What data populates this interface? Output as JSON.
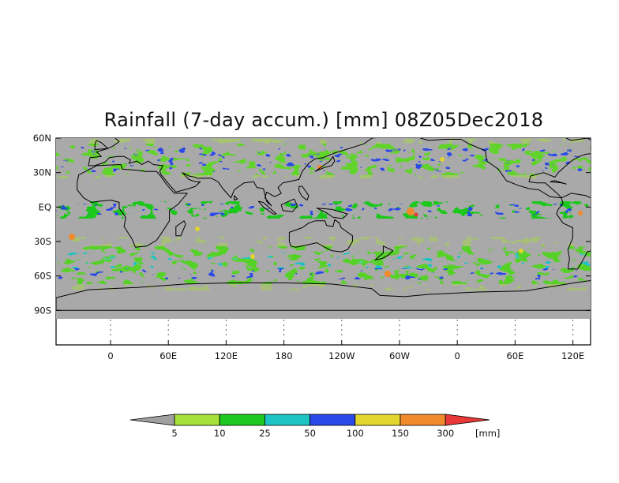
{
  "map": {
    "title": "Rainfall (7-day accum.) [mm] 08Z05Dec2018",
    "projection": "equirectangular",
    "lon_range": [
      -30,
      300
    ],
    "lat_range": [
      -120,
      60
    ],
    "data_lat_range": [
      -90,
      60
    ],
    "lat_ticks": [
      {
        "lat": 60,
        "label": "60N"
      },
      {
        "lat": 30,
        "label": "30N"
      },
      {
        "lat": 0,
        "label": "EQ"
      },
      {
        "lat": -30,
        "label": "30S"
      },
      {
        "lat": -60,
        "label": "60S"
      },
      {
        "lat": -90,
        "label": "90S"
      }
    ],
    "lon_ticks": [
      {
        "lon": 0,
        "label": "0"
      },
      {
        "lon": 60,
        "label": "60E"
      },
      {
        "lon": 120,
        "label": "120E"
      },
      {
        "lon": 180,
        "label": "180"
      },
      {
        "lon": 240,
        "label": "120W"
      },
      {
        "lon": 300,
        "label": "60W"
      },
      {
        "lon": 360,
        "label": "0"
      },
      {
        "lon": 420,
        "label": "60E"
      },
      {
        "lon": 480,
        "label": "120E"
      }
    ],
    "no_data_color": "#a9a9a9",
    "coastline_color": "#000000"
  },
  "legend": {
    "unit_label": "[mm]",
    "low_color": "#a0a0a0",
    "high_color": "#e83838",
    "bins": [
      {
        "color": "#a6e03a"
      },
      {
        "color": "#1ec81e"
      },
      {
        "color": "#1ec3c3"
      },
      {
        "color": "#2a48e6"
      },
      {
        "color": "#e2d52e"
      },
      {
        "color": "#f08a2a"
      }
    ],
    "tick_labels": [
      "5",
      "10",
      "25",
      "50",
      "100",
      "150",
      "300"
    ]
  }
}
